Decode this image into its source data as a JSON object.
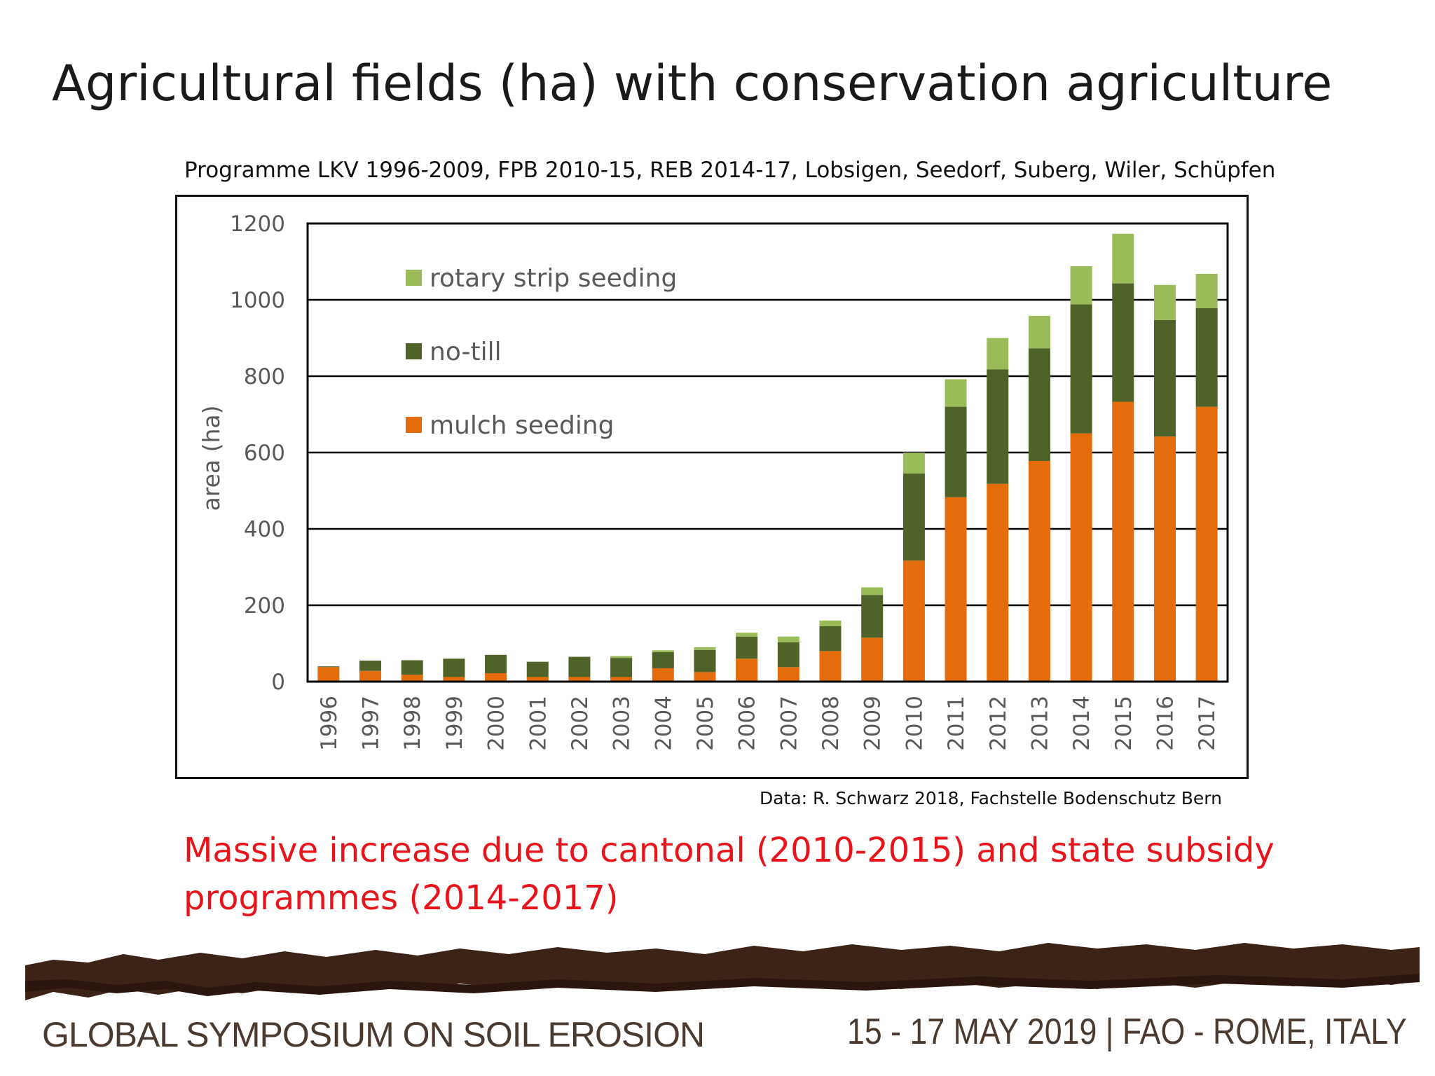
{
  "slide": {
    "title": "Agricultural fields (ha) with conservation agriculture",
    "programme_note": "Programme LKV 1996-2009, FPB 2010-15, REB 2014-17, Lobsigen, Seedorf, Suberg, Wiler, Schüpfen",
    "source_note": "Data: R. Schwarz 2018, Fachstelle Bodenschutz Bern",
    "conclusion": "Massive increase due to cantonal (2010-2015) and state subsidy programmes (2014-2017)"
  },
  "footer": {
    "event_name": "GLOBAL SYMPOSIUM ON SOIL EROSION",
    "event_info": "15 - 17 MAY 2019 | FAO - ROME, ITALY"
  },
  "chart_data": {
    "type": "bar",
    "stacked": true,
    "title": "",
    "xlabel": "",
    "ylabel": "area (ha)",
    "ylim": [
      0,
      1200
    ],
    "yticks": [
      0,
      200,
      400,
      600,
      800,
      1000,
      1200
    ],
    "grid": true,
    "legend_position": "top-left",
    "categories": [
      "1996",
      "1997",
      "1998",
      "1999",
      "2000",
      "2001",
      "2002",
      "2003",
      "2004",
      "2005",
      "2006",
      "2007",
      "2008",
      "2009",
      "2010",
      "2011",
      "2012",
      "2013",
      "2014",
      "2015",
      "2016",
      "2017"
    ],
    "series": [
      {
        "name": "mulch seeding",
        "color": "#e46c0a",
        "values": [
          38,
          28,
          18,
          12,
          22,
          12,
          12,
          12,
          35,
          25,
          60,
          38,
          80,
          115,
          317,
          483,
          518,
          578,
          650,
          733,
          642,
          720
        ]
      },
      {
        "name": "no-till",
        "color": "#4f6228",
        "values": [
          2,
          27,
          38,
          48,
          48,
          40,
          53,
          50,
          42,
          58,
          58,
          65,
          65,
          112,
          228,
          237,
          300,
          295,
          338,
          310,
          305,
          258
        ]
      },
      {
        "name": "rotary strip seeding",
        "color": "#9bbb59",
        "values": [
          0,
          0,
          0,
          0,
          0,
          0,
          0,
          5,
          5,
          7,
          10,
          15,
          15,
          20,
          55,
          72,
          82,
          85,
          100,
          130,
          92,
          90
        ]
      }
    ],
    "legend_order": [
      "rotary strip seeding",
      "no-till",
      "mulch seeding"
    ]
  }
}
